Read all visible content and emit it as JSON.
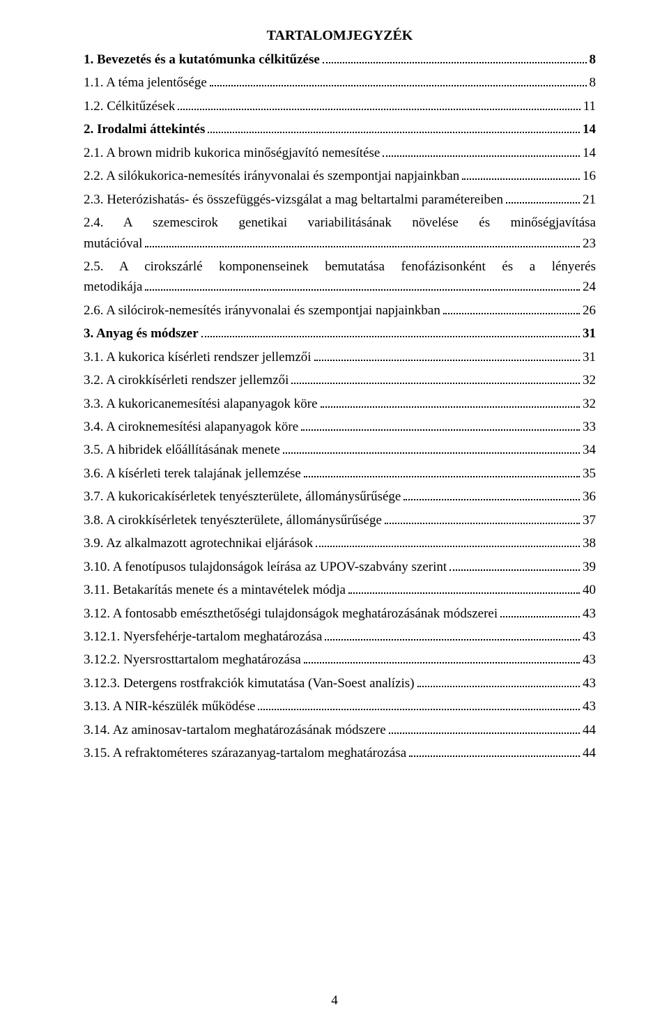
{
  "title": "TARTALOMJEGYZÉK",
  "page_number": "4",
  "entries": [
    {
      "text": "1. Bevezetés és a kutatómunka célkitűzése",
      "page": "8",
      "bold": true
    },
    {
      "text": "1.1. A téma jelentősége",
      "page": "8",
      "bold": false
    },
    {
      "text": "1.2. Célkitűzések",
      "page": "11",
      "bold": false
    },
    {
      "text": "2. Irodalmi áttekintés",
      "page": "14",
      "bold": true
    },
    {
      "text": "2.1. A brown midrib kukorica minőségjavító nemesítése",
      "page": "14",
      "bold": false
    },
    {
      "text": "2.2. A silókukorica-nemesítés irányvonalai és szempontjai napjainkban",
      "page": "16",
      "bold": false
    },
    {
      "text": "2.3. Heterózishatás- és összefüggés-vizsgálat a mag beltartalmi paramétereiben",
      "page": "21",
      "bold": false
    },
    {
      "multi": true,
      "line1": "2.4. A szemescirok genetikai variabilitásának növelése és minőségjavítása",
      "line2": "mutációval",
      "page": "23",
      "bold": false
    },
    {
      "multi": true,
      "line1": "2.5. A cirokszárlé komponenseinek bemutatása fenofázisonként és a lényerés",
      "line2": "metodikája",
      "page": "24",
      "bold": false
    },
    {
      "text": "2.6. A silócirok-nemesítés irányvonalai és szempontjai napjainkban",
      "page": "26",
      "bold": false
    },
    {
      "text": "3. Anyag és módszer",
      "page": "31",
      "bold": true
    },
    {
      "text": "3.1. A kukorica kísérleti rendszer jellemzői",
      "page": "31",
      "bold": false
    },
    {
      "text": "3.2. A cirokkísérleti rendszer jellemzői",
      "page": "32",
      "bold": false
    },
    {
      "text": "3.3. A kukoricanemesítési alapanyagok köre",
      "page": "32",
      "bold": false
    },
    {
      "text": "3.4. A ciroknemesítési alapanyagok köre",
      "page": "33",
      "bold": false
    },
    {
      "text": "3.5. A hibridek előállításának menete",
      "page": "34",
      "bold": false
    },
    {
      "text": "3.6. A kísérleti terek talajának jellemzése",
      "page": "35",
      "bold": false
    },
    {
      "text": "3.7. A kukoricakísérletek tenyészterülete, állománysűrűsége",
      "page": "36",
      "bold": false
    },
    {
      "text": "3.8. A cirokkísérletek tenyészterülete, állománysűrűsége",
      "page": "37",
      "bold": false
    },
    {
      "text": "3.9. Az alkalmazott agrotechnikai eljárások",
      "page": "38",
      "bold": false
    },
    {
      "text": "3.10. A fenotípusos tulajdonságok leírása az UPOV-szabvány szerint",
      "page": "39",
      "bold": false
    },
    {
      "text": "3.11. Betakarítás menete és a mintavételek módja",
      "page": "40",
      "bold": false
    },
    {
      "text": "3.12. A fontosabb emészthetőségi tulajdonságok meghatározásának módszerei",
      "page": "43",
      "bold": false
    },
    {
      "text": "3.12.1. Nyersfehérje-tartalom meghatározása",
      "page": "43",
      "bold": false
    },
    {
      "text": "3.12.2. Nyersrosttartalom meghatározása",
      "page": "43",
      "bold": false
    },
    {
      "text": "3.12.3. Detergens rostfrakciók kimutatása (Van-Soest analízis)",
      "page": "43",
      "bold": false
    },
    {
      "text": "3.13. A NIR-készülék működése",
      "page": "43",
      "bold": false
    },
    {
      "text": "3.14. Az aminosav-tartalom meghatározásának módszere",
      "page": "44",
      "bold": false
    },
    {
      "text": "3.15. A refraktométeres szárazanyag-tartalom meghatározása",
      "page": "44",
      "bold": false
    }
  ]
}
